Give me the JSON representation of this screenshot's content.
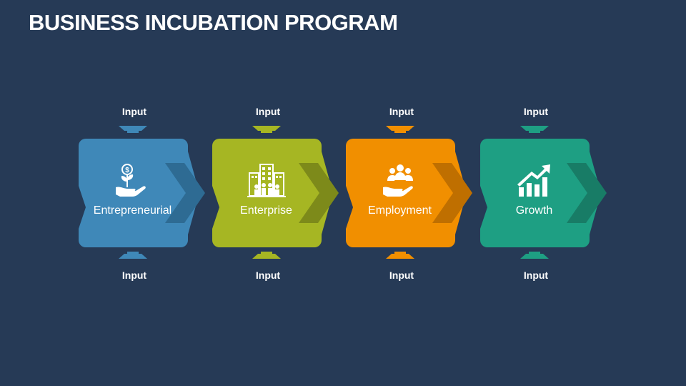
{
  "title": "BUSINESS INCUBATION PROGRAM",
  "steps": [
    {
      "label": "Entrepreneurial",
      "input_top": "Input",
      "input_bottom": "Input",
      "color": "#3f88b8",
      "accent": "#2e6b93",
      "icon": "money-plant-hand-icon"
    },
    {
      "label": "Enterprise",
      "input_top": "Input",
      "input_bottom": "Input",
      "color": "#a6b623",
      "accent": "#7d8a1a",
      "icon": "office-building-icon"
    },
    {
      "label": "Employment",
      "input_top": "Input",
      "input_bottom": "Input",
      "color": "#f18f00",
      "accent": "#bf6f00",
      "icon": "people-in-hand-icon"
    },
    {
      "label": "Growth",
      "input_top": "Input",
      "input_bottom": "Input",
      "color": "#1e9f83",
      "accent": "#187c66",
      "icon": "growth-chart-icon"
    }
  ]
}
